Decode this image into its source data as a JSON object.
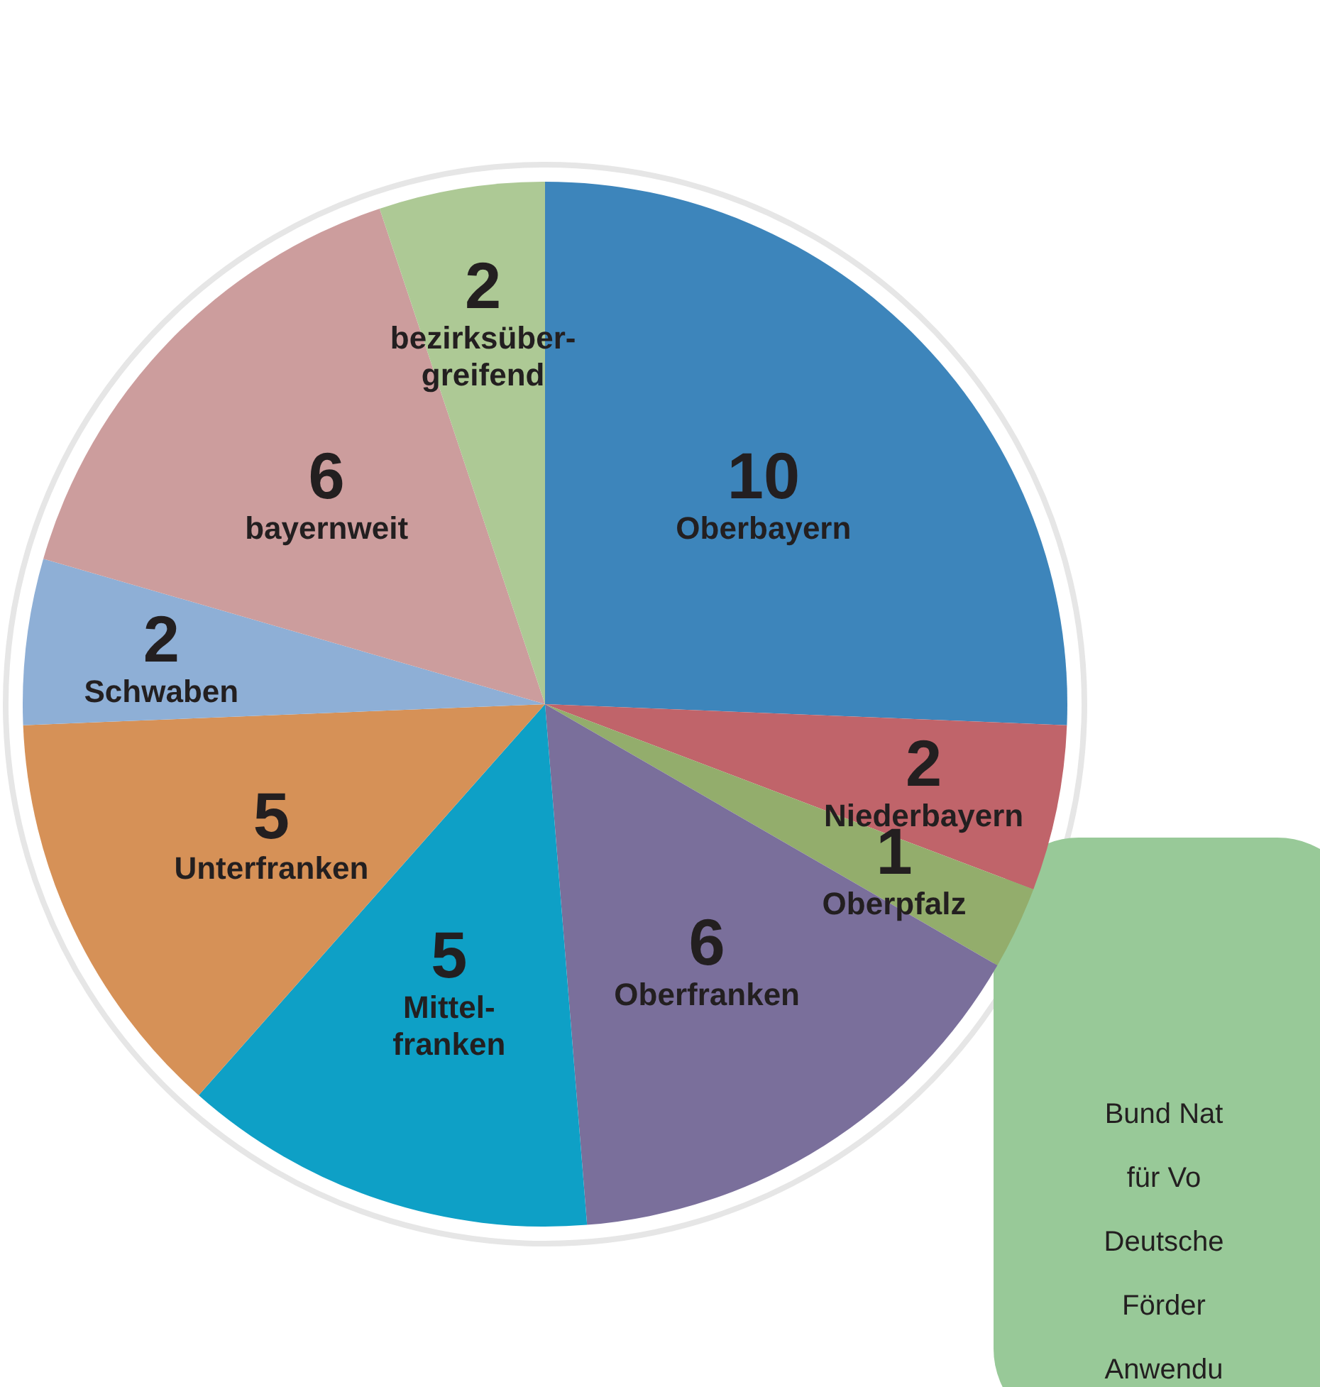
{
  "chart_data": {
    "type": "pie",
    "categories": [
      "Oberbayern",
      "Niederbayern",
      "Oberpfalz",
      "Oberfranken",
      "Mittel-\nfranken",
      "Unterfranken",
      "Schwaben",
      "bayernweit",
      "bezirksüber-\ngreifend"
    ],
    "values": [
      10,
      2,
      1,
      6,
      5,
      5,
      2,
      6,
      2
    ],
    "colors": [
      "#3d85bb",
      "#c0646a",
      "#93ad6c",
      "#7a6f9b",
      "#0ea0c6",
      "#d69157",
      "#8eafd6",
      "#cc9d9d",
      "#adc995"
    ],
    "data_labels": true,
    "legend": false,
    "annotations": [
      "Bund Nat",
      "für Vo",
      "Deutsche",
      "Förder",
      "Anwendu"
    ]
  }
}
